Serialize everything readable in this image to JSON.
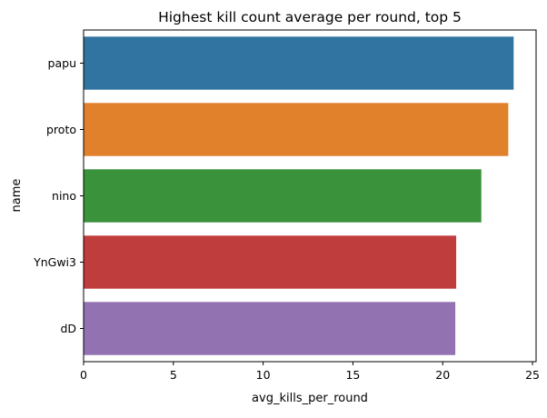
{
  "chart_data": {
    "type": "bar",
    "orientation": "horizontal",
    "title": "Highest kill count average per round, top 5",
    "xlabel": "avg_kills_per_round",
    "ylabel": "name",
    "xlim": [
      0,
      25.2
    ],
    "xticks": [
      0,
      5,
      10,
      15,
      20,
      25
    ],
    "grid": false,
    "categories": [
      "papu",
      "proto",
      "nino",
      "YnGwi3",
      "dD"
    ],
    "values": [
      23.95,
      23.65,
      22.15,
      20.75,
      20.7
    ],
    "colors": [
      "#3274a1",
      "#e1812c",
      "#3a923a",
      "#c03d3e",
      "#9372b2"
    ]
  }
}
